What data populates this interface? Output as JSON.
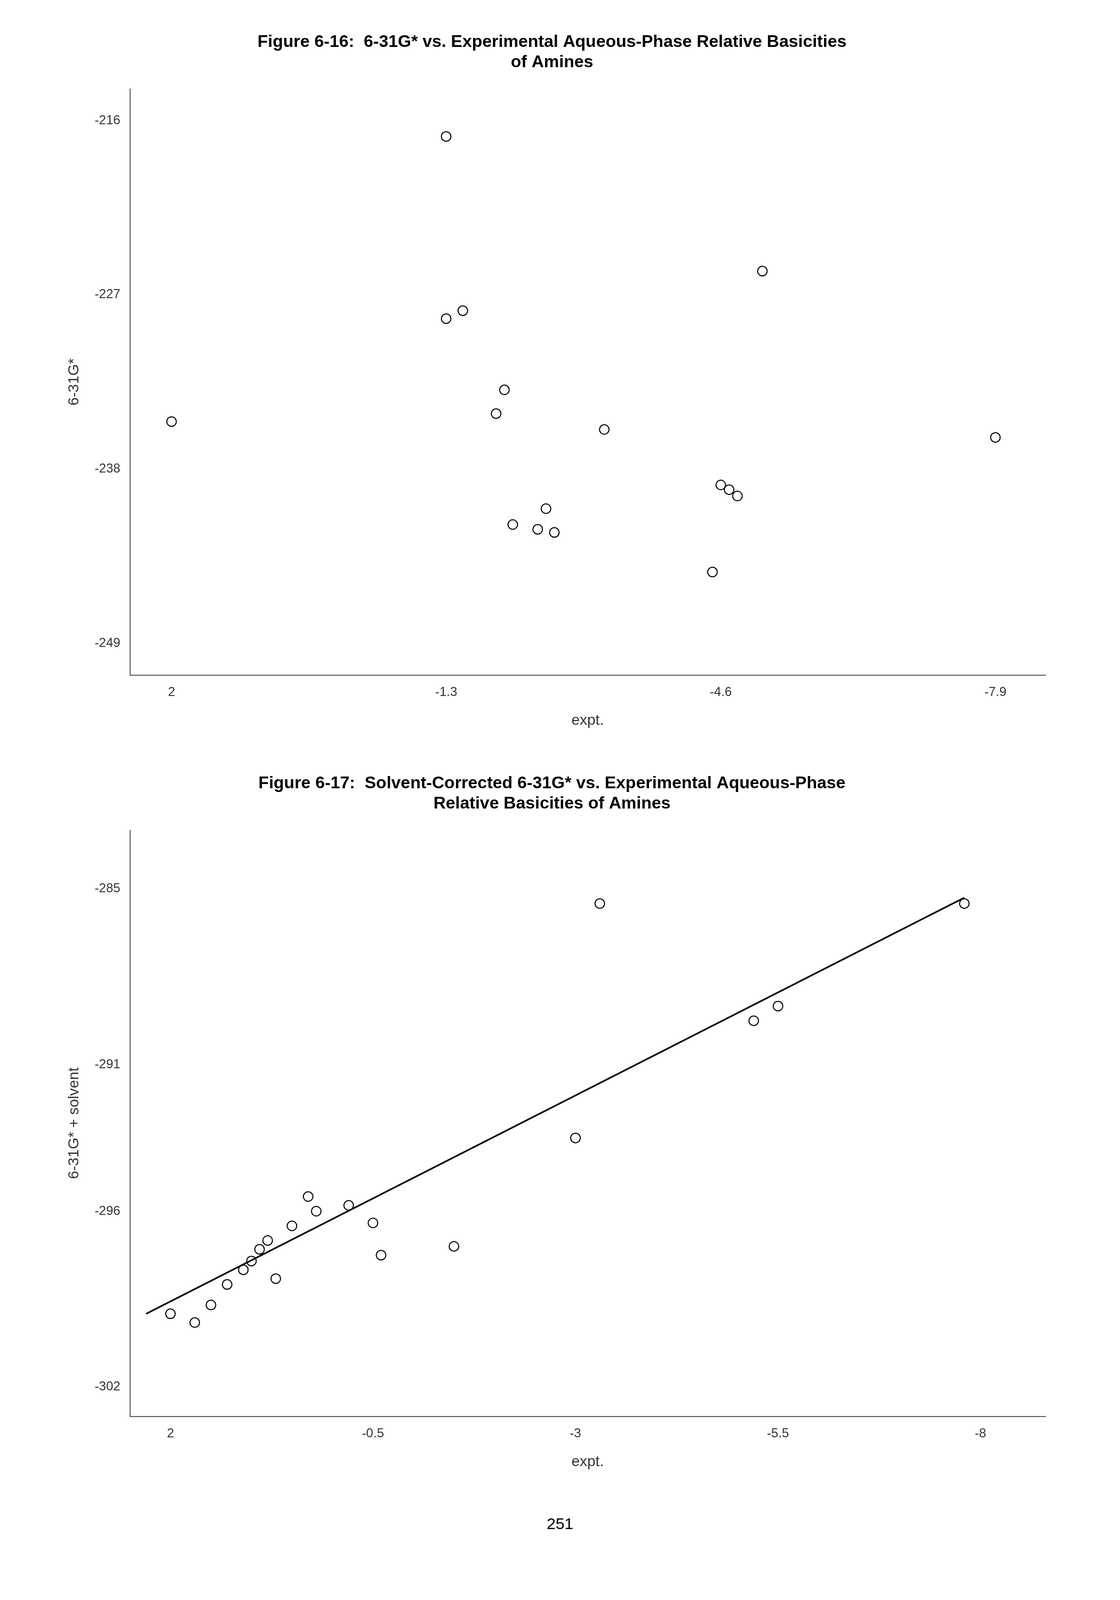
{
  "chart_data": [
    {
      "type": "scatter",
      "title": [
        "Figure 6-16:  6-31G* vs. Experimental Aqueous-Phase Relative Basicities",
        "of Amines"
      ],
      "xlabel": "expt.",
      "ylabel": "6-31G*",
      "xlim": [
        2.5,
        -8.5
      ],
      "ylim": [
        -251,
        -214
      ],
      "xticks": [
        2,
        -1.3,
        -4.6,
        -7.9
      ],
      "yticks": [
        -216,
        -227,
        -238,
        -249
      ],
      "grid": false,
      "series": [
        {
          "type": "scatter",
          "marker": "open_circle",
          "color": "#000000",
          "x": [
            2.0,
            -1.3,
            -1.5,
            -2.0,
            -1.9,
            -2.1,
            -2.4,
            -2.6,
            -2.5,
            -3.2,
            -4.6,
            -4.7,
            -4.8,
            -7.9,
            -4.5,
            -5.1,
            -1.3
          ],
          "values": [
            -235.0,
            -228.5,
            -228.0,
            -233.0,
            -234.5,
            -241.5,
            -241.8,
            -242.0,
            -240.5,
            -235.5,
            -239.0,
            -239.3,
            -239.7,
            -236.0,
            -244.5,
            -225.5,
            -217.0
          ]
        }
      ]
    },
    {
      "type": "scatter",
      "title": [
        "Figure 6-17:  Solvent-Corrected 6-31G* vs. Experimental Aqueous-Phase",
        "Relative Basicities of Amines"
      ],
      "xlabel": "expt.",
      "ylabel": "6-31G* + solvent",
      "xlim": [
        2.5,
        -8.8
      ],
      "ylim": [
        -303,
        -283
      ],
      "xticks": [
        2,
        -0.5,
        -3,
        -5.5,
        -8
      ],
      "yticks": [
        -285,
        -291,
        -296,
        -302
      ],
      "grid": false,
      "annotations": [
        "251"
      ],
      "series": [
        {
          "type": "scatter",
          "marker": "open_circle",
          "color": "#000000",
          "x": [
            2.0,
            1.7,
            1.5,
            1.3,
            1.1,
            1.0,
            0.9,
            0.8,
            0.7,
            0.5,
            0.3,
            0.2,
            -0.2,
            -0.5,
            -0.6,
            -1.5,
            -3.0,
            -3.3,
            -5.5,
            -5.2,
            -7.8
          ],
          "values": [
            -299.5,
            -299.8,
            -299.2,
            -298.5,
            -298.0,
            -297.7,
            -297.3,
            -297.0,
            -298.3,
            -296.5,
            -295.5,
            -296.0,
            -295.8,
            -296.4,
            -297.5,
            -297.2,
            -293.5,
            -285.5,
            -289.0,
            -289.5,
            -285.5
          ]
        },
        {
          "type": "line",
          "line_style": "solid",
          "color": "#000000",
          "x": [
            2.3,
            -7.8
          ],
          "values": [
            -299.5,
            -285.3
          ]
        }
      ]
    }
  ]
}
